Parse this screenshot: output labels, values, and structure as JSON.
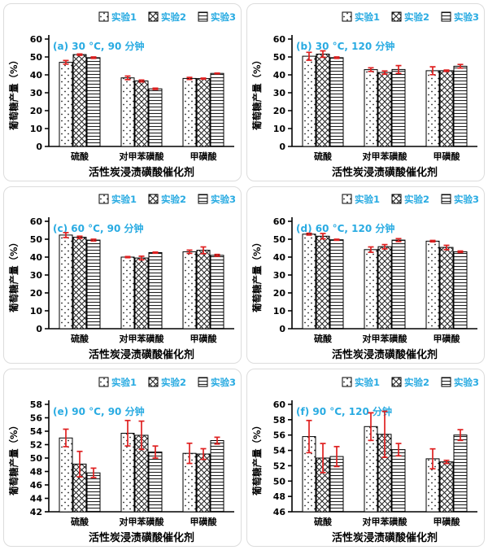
{
  "page": {
    "background": "#ffffff",
    "card_border": "#dcdcdc"
  },
  "colors": {
    "accent": "#29abe2",
    "error_bar": "#df2020",
    "bar_fill": "#ffffff",
    "hatch": "#222222",
    "axis": "#000000"
  },
  "legend": {
    "position": "top-right",
    "items": [
      {
        "label": "实验1",
        "pattern": "dots"
      },
      {
        "label": "实验2",
        "pattern": "crosshatch"
      },
      {
        "label": "实验3",
        "pattern": "hlines"
      }
    ]
  },
  "chart_data": [
    {
      "type": "bar",
      "title": "(a) 30 °C, 90 分钟",
      "xlabel": "活性炭浸渍磺酸催化剂",
      "ylabel": "葡萄糖产量（%）",
      "categories": [
        "硫酸",
        "对甲苯磺酸",
        "甲磺酸"
      ],
      "series": [
        {
          "name": "实验1",
          "values": [
            47.0,
            38.3,
            38.0
          ],
          "errors": [
            1.0,
            1.0,
            0.6
          ]
        },
        {
          "name": "实验2",
          "values": [
            51.3,
            36.6,
            37.9
          ],
          "errors": [
            0.4,
            0.5,
            0.3
          ]
        },
        {
          "name": "实验3",
          "values": [
            49.6,
            32.2,
            40.8
          ],
          "errors": [
            0.4,
            0.4,
            0.2
          ]
        }
      ],
      "ylim": [
        0,
        60
      ],
      "ytick_step": 10,
      "grid": false,
      "legend_position": "top"
    },
    {
      "type": "bar",
      "title": "(b) 30 °C, 120 分钟",
      "xlabel": "活性炭浸渍磺酸催化剂",
      "ylabel": "葡萄糖产量（%）",
      "categories": [
        "硫酸",
        "对甲苯磺酸",
        "甲磺酸"
      ],
      "series": [
        {
          "name": "实验1",
          "values": [
            50.4,
            42.9,
            42.3
          ],
          "errors": [
            2.2,
            1.0,
            2.2
          ]
        },
        {
          "name": "实验2",
          "values": [
            51.6,
            41.3,
            42.3
          ],
          "errors": [
            1.8,
            0.9,
            0.4
          ]
        },
        {
          "name": "实验3",
          "values": [
            49.6,
            43.0,
            44.8
          ],
          "errors": [
            0.4,
            2.2,
            1.0
          ]
        }
      ],
      "ylim": [
        0,
        60
      ],
      "ytick_step": 10,
      "grid": false,
      "legend_position": "top"
    },
    {
      "type": "bar",
      "title": "(c) 60 °C, 90 分钟",
      "xlabel": "活性炭浸渍磺酸催化剂",
      "ylabel": "葡萄糖产量（%）",
      "categories": [
        "硫酸",
        "对甲苯磺酸",
        "甲磺酸"
      ],
      "series": [
        {
          "name": "实验1",
          "values": [
            52.3,
            40.0,
            43.0
          ],
          "errors": [
            1.4,
            0.3,
            0.9
          ]
        },
        {
          "name": "实验2",
          "values": [
            51.1,
            39.5,
            43.8
          ],
          "errors": [
            0.6,
            1.0,
            1.9
          ]
        },
        {
          "name": "实验3",
          "values": [
            49.5,
            42.5,
            41.0
          ],
          "errors": [
            0.5,
            0.3,
            0.5
          ]
        }
      ],
      "ylim": [
        0,
        60
      ],
      "ytick_step": 10,
      "grid": false,
      "legend_position": "top"
    },
    {
      "type": "bar",
      "title": "(d) 60 °C, 120 分钟",
      "xlabel": "活性炭浸渍磺酸催化剂",
      "ylabel": "葡萄糖产量（%）",
      "categories": [
        "硫酸",
        "对甲苯磺酸",
        "甲磺酸"
      ],
      "series": [
        {
          "name": "实验1",
          "values": [
            52.8,
            44.2,
            48.9
          ],
          "errors": [
            0.5,
            1.5,
            0.4
          ]
        },
        {
          "name": "实验2",
          "values": [
            51.7,
            45.8,
            45.4
          ],
          "errors": [
            1.5,
            1.2,
            1.2
          ]
        },
        {
          "name": "实验3",
          "values": [
            49.7,
            49.5,
            43.0
          ],
          "errors": [
            0.3,
            0.8,
            0.4
          ]
        }
      ],
      "ylim": [
        0,
        60
      ],
      "ytick_step": 10,
      "grid": false,
      "legend_position": "top"
    },
    {
      "type": "bar",
      "title": "(e) 90 °C, 90 分钟",
      "xlabel": "活性炭浸渍磺酸催化剂",
      "ylabel": "葡萄糖产量（%）",
      "categories": [
        "硫酸",
        "对甲苯磺酸",
        "甲磺酸"
      ],
      "series": [
        {
          "name": "实验1",
          "values": [
            53.0,
            53.7,
            50.7
          ],
          "errors": [
            1.3,
            1.9,
            1.5
          ]
        },
        {
          "name": "实验2",
          "values": [
            49.1,
            53.4,
            50.6
          ],
          "errors": [
            1.9,
            2.1,
            0.8
          ]
        },
        {
          "name": "实验3",
          "values": [
            47.8,
            50.9,
            52.6
          ],
          "errors": [
            0.7,
            0.9,
            0.5
          ]
        }
      ],
      "ylim": [
        42,
        58
      ],
      "ytick_step": 2,
      "grid": false,
      "legend_position": "top"
    },
    {
      "type": "bar",
      "title": "(f) 90 °C, 120 分钟",
      "xlabel": "活性炭浸渍磺酸催化剂",
      "ylabel": "葡萄糖产量（%）",
      "categories": [
        "硫酸",
        "对甲苯磺酸",
        "甲磺酸"
      ],
      "series": [
        {
          "name": "实验1",
          "values": [
            55.8,
            57.1,
            52.9
          ],
          "errors": [
            2.1,
            1.8,
            1.3
          ]
        },
        {
          "name": "实验2",
          "values": [
            53.0,
            56.1,
            52.5
          ],
          "errors": [
            1.9,
            3.0,
            0.2
          ]
        },
        {
          "name": "实验3",
          "values": [
            53.2,
            54.1,
            56.0
          ],
          "errors": [
            1.3,
            0.8,
            0.7
          ]
        }
      ],
      "ylim": [
        46,
        60
      ],
      "ytick_step": 2,
      "grid": false,
      "legend_position": "top"
    }
  ]
}
